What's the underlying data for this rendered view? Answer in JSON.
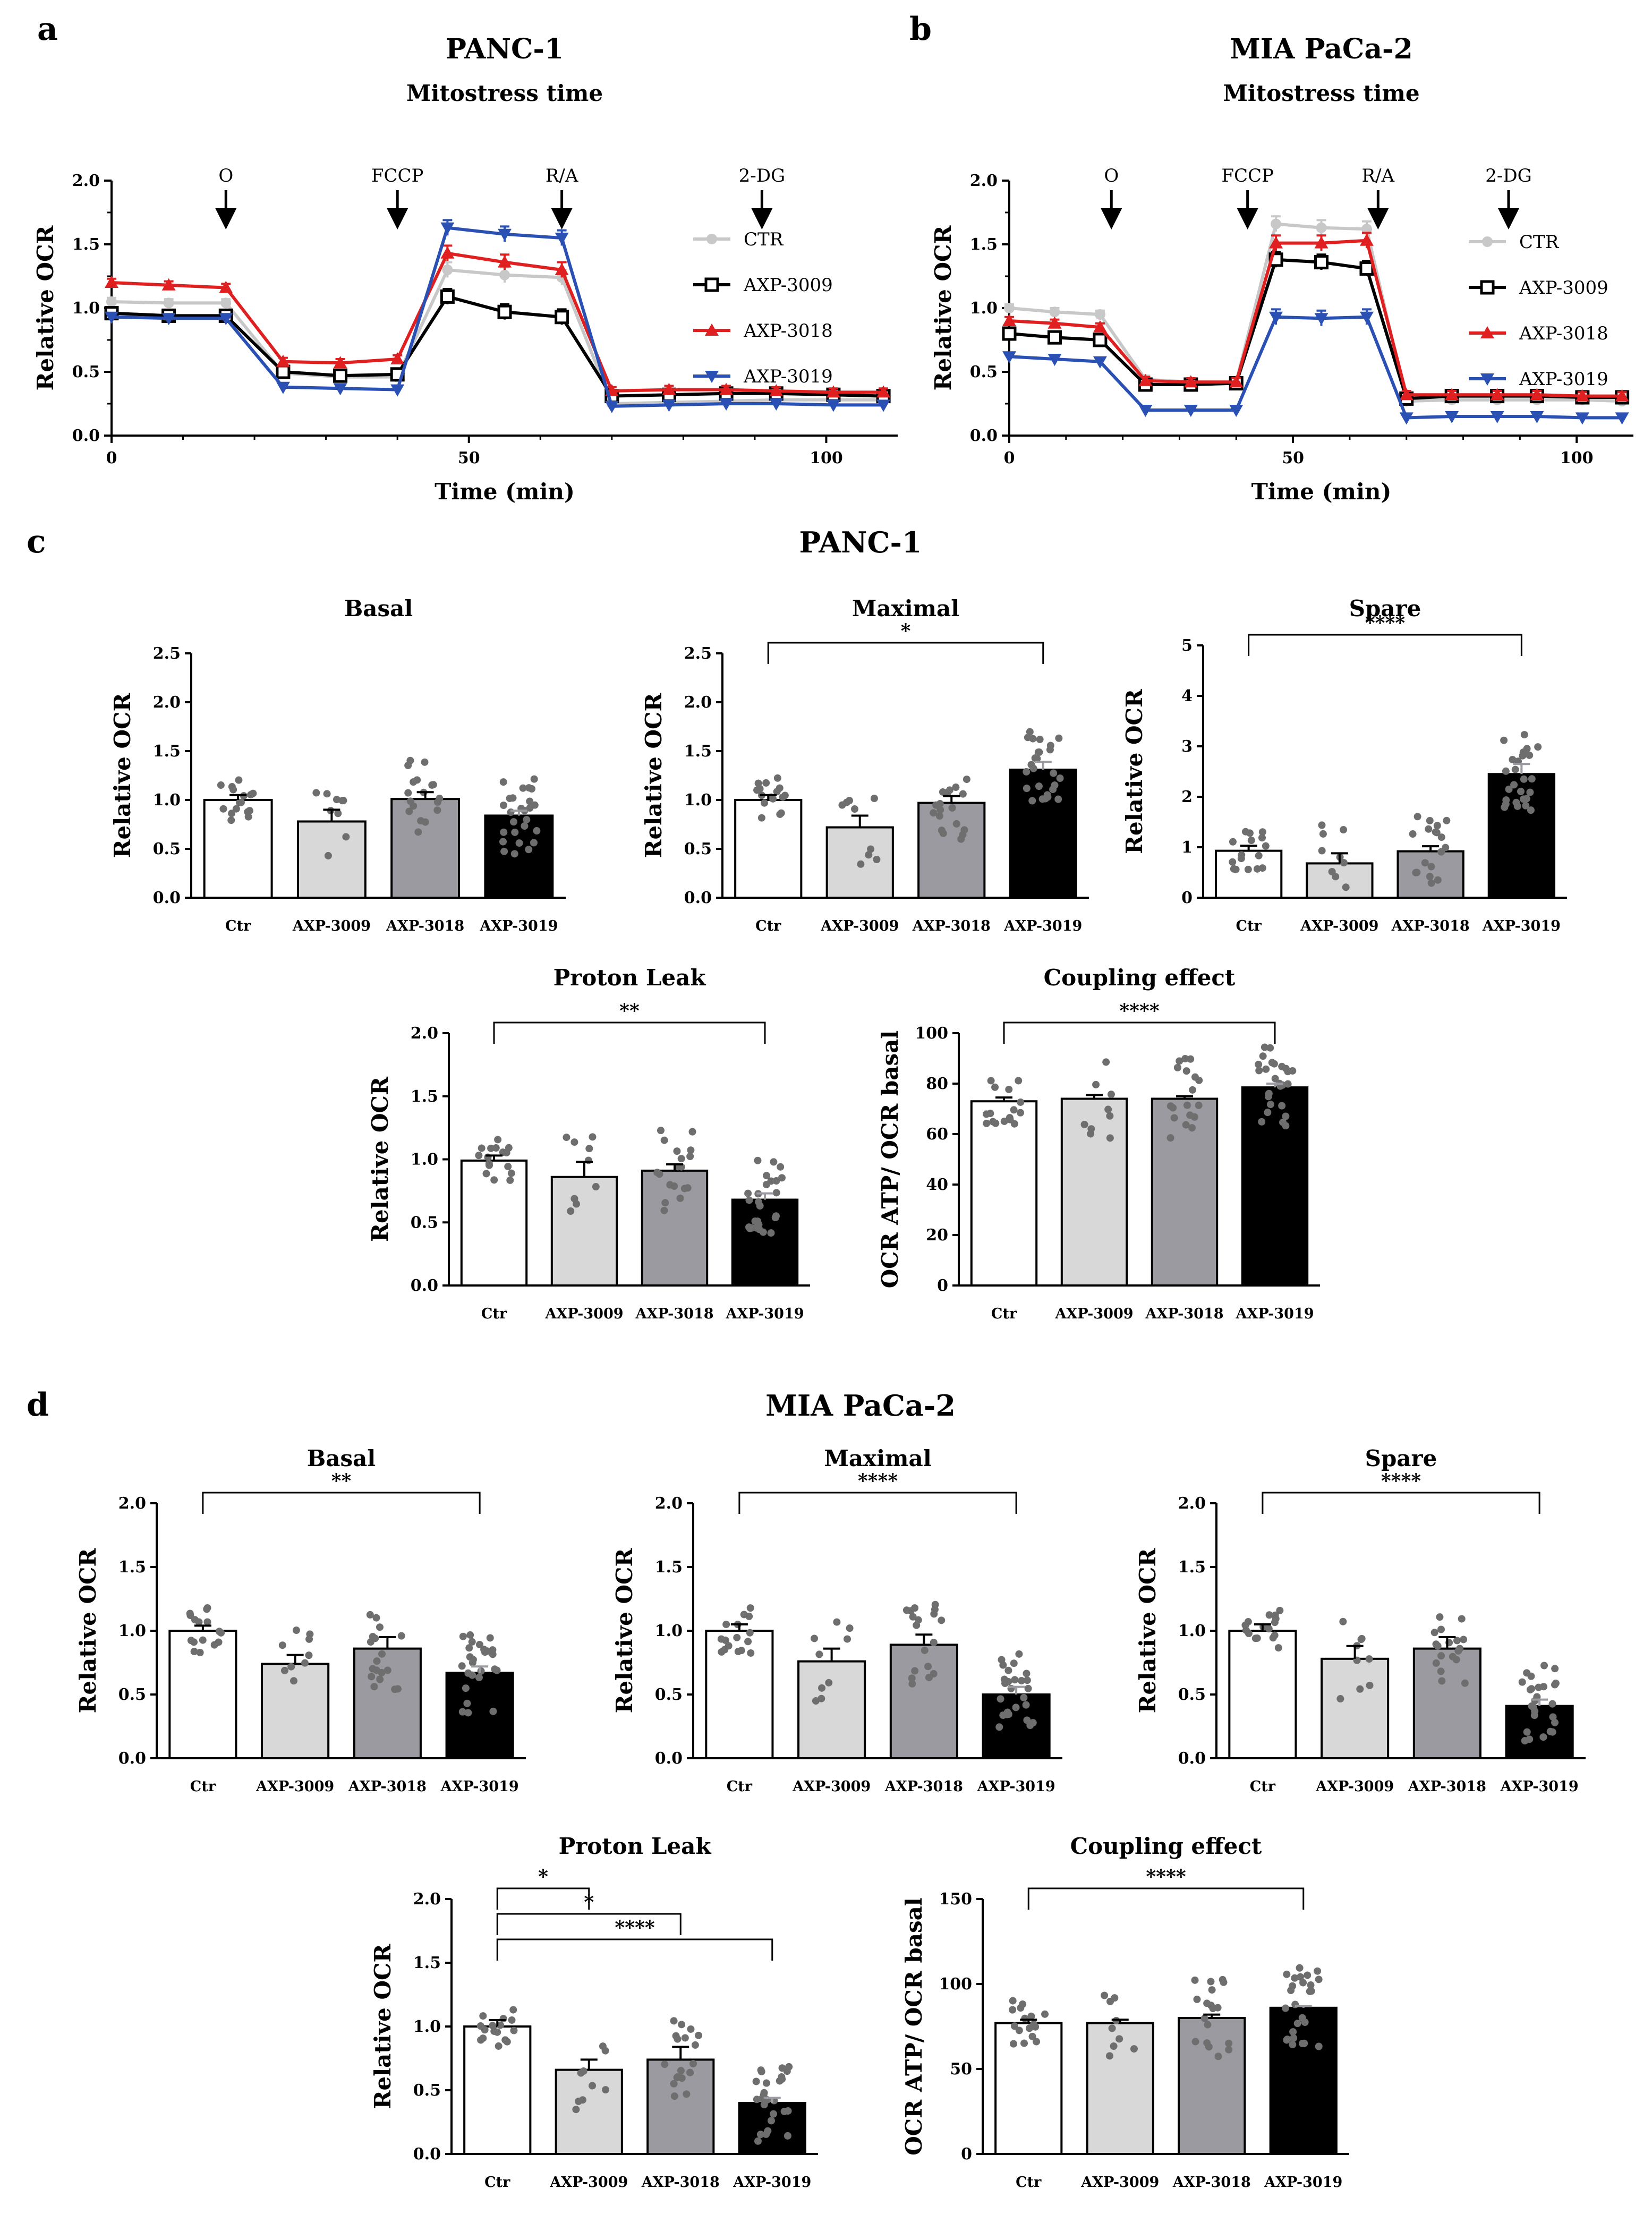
{
  "panel_labels": {
    "a": "a",
    "b": "b",
    "c": "c",
    "d": "d"
  },
  "section_titles": {
    "c": "PANC-1",
    "d": "MIA PaCa-2"
  },
  "colors": {
    "CTR": "#c8c8c8",
    "AXP-3009": "#000000",
    "AXP-3018": "#e02020",
    "AXP-3019": "#2a50b4",
    "bar_Ctr": "#ffffff",
    "bar_AXP-3009": "#d8d8d8",
    "bar_AXP-3018": "#9a9aa0",
    "bar_AXP-3019": "#000000"
  },
  "chart_data": [
    {
      "id": "a",
      "type": "line",
      "title": "PANC-1",
      "subtitle": "Mitostress time",
      "xlabel": "Time (min)",
      "ylabel": "Relative OCR",
      "xlim": [
        0,
        110
      ],
      "ylim": [
        0,
        2.0
      ],
      "xticks": [
        "0",
        "50",
        "100"
      ],
      "yticks": [
        "0.0",
        "0.5",
        "1.0",
        "1.5",
        "2.0"
      ],
      "x": [
        0,
        8,
        16,
        24,
        32,
        40,
        47,
        55,
        63,
        70,
        78,
        86,
        93,
        101,
        108
      ],
      "injections": [
        {
          "label": "O",
          "x": 16
        },
        {
          "label": "FCCP",
          "x": 40
        },
        {
          "label": "R/A",
          "x": 63
        },
        {
          "label": "2-DG",
          "x": 91
        }
      ],
      "legend_position": "right",
      "series": [
        {
          "name": "CTR",
          "values": [
            1.05,
            1.04,
            1.04,
            0.49,
            0.46,
            0.46,
            1.3,
            1.26,
            1.24,
            0.25,
            0.26,
            0.27,
            0.28,
            0.28,
            0.28
          ]
        },
        {
          "name": "AXP-3009",
          "values": [
            0.96,
            0.94,
            0.94,
            0.5,
            0.47,
            0.48,
            1.09,
            0.97,
            0.93,
            0.31,
            0.32,
            0.33,
            0.33,
            0.32,
            0.31
          ]
        },
        {
          "name": "AXP-3018",
          "values": [
            1.2,
            1.18,
            1.16,
            0.58,
            0.57,
            0.6,
            1.43,
            1.36,
            1.3,
            0.35,
            0.36,
            0.36,
            0.35,
            0.34,
            0.34
          ]
        },
        {
          "name": "AXP-3019",
          "values": [
            0.93,
            0.92,
            0.92,
            0.38,
            0.37,
            0.36,
            1.63,
            1.58,
            1.55,
            0.23,
            0.24,
            0.25,
            0.25,
            0.24,
            0.24
          ]
        }
      ]
    },
    {
      "id": "b",
      "type": "line",
      "title": "MIA PaCa-2",
      "subtitle": "Mitostress time",
      "xlabel": "Time (min)",
      "ylabel": "Relative OCR",
      "xlim": [
        0,
        110
      ],
      "ylim": [
        0,
        2.0
      ],
      "xticks": [
        "0",
        "50",
        "100"
      ],
      "yticks": [
        "0.0",
        "0.5",
        "1.0",
        "1.5",
        "2.0"
      ],
      "x": [
        0,
        8,
        16,
        24,
        32,
        40,
        47,
        55,
        63,
        70,
        78,
        86,
        93,
        101,
        108
      ],
      "injections": [
        {
          "label": "O",
          "x": 18
        },
        {
          "label": "FCCP",
          "x": 42
        },
        {
          "label": "R/A",
          "x": 65
        },
        {
          "label": "2-DG",
          "x": 88
        }
      ],
      "legend_position": "right",
      "series": [
        {
          "name": "CTR",
          "values": [
            1.0,
            0.97,
            0.95,
            0.44,
            0.42,
            0.42,
            1.66,
            1.63,
            1.62,
            0.27,
            0.28,
            0.28,
            0.28,
            0.28,
            0.27
          ]
        },
        {
          "name": "AXP-3009",
          "values": [
            0.8,
            0.77,
            0.75,
            0.4,
            0.4,
            0.41,
            1.38,
            1.36,
            1.31,
            0.29,
            0.31,
            0.31,
            0.31,
            0.3,
            0.3
          ]
        },
        {
          "name": "AXP-3018",
          "values": [
            0.9,
            0.88,
            0.85,
            0.43,
            0.42,
            0.42,
            1.51,
            1.51,
            1.53,
            0.32,
            0.32,
            0.32,
            0.32,
            0.31,
            0.31
          ]
        },
        {
          "name": "AXP-3019",
          "values": [
            0.62,
            0.6,
            0.58,
            0.2,
            0.2,
            0.2,
            0.93,
            0.92,
            0.93,
            0.14,
            0.15,
            0.15,
            0.15,
            0.14,
            0.14
          ]
        }
      ]
    },
    {
      "id": "c-basal",
      "type": "bar",
      "title": "Basal",
      "ylabel": "Relative OCR",
      "categories": [
        "Ctr",
        "AXP-3009",
        "AXP-3018",
        "AXP-3019"
      ],
      "values": [
        1.0,
        0.78,
        1.01,
        0.84
      ],
      "errors": [
        0.05,
        0.12,
        0.07,
        0.05
      ],
      "ylim": [
        0,
        2.5
      ],
      "yticks": [
        "0.0",
        "0.5",
        "1.0",
        "1.5",
        "2.0",
        "2.5"
      ],
      "significance": []
    },
    {
      "id": "c-maximal",
      "type": "bar",
      "title": "Maximal",
      "ylabel": "Relative OCR",
      "categories": [
        "Ctr",
        "AXP-3009",
        "AXP-3018",
        "AXP-3019"
      ],
      "values": [
        1.0,
        0.72,
        0.97,
        1.31
      ],
      "errors": [
        0.05,
        0.12,
        0.07,
        0.08
      ],
      "ylim": [
        0,
        2.5
      ],
      "yticks": [
        "0.0",
        "0.5",
        "1.0",
        "1.5",
        "2.0",
        "2.5"
      ],
      "significance": [
        {
          "from": 0,
          "to": 3,
          "label": "*"
        }
      ]
    },
    {
      "id": "c-spare",
      "type": "bar",
      "title": "Spare",
      "ylabel": "Relative OCR",
      "categories": [
        "Ctr",
        "AXP-3009",
        "AXP-3018",
        "AXP-3019"
      ],
      "values": [
        0.93,
        0.68,
        0.92,
        2.45
      ],
      "errors": [
        0.1,
        0.2,
        0.1,
        0.2
      ],
      "ylim": [
        0,
        5
      ],
      "yticks": [
        "0",
        "1",
        "2",
        "3",
        "4",
        "5"
      ],
      "significance": [
        {
          "from": 0,
          "to": 3,
          "label": "****"
        }
      ]
    },
    {
      "id": "c-proton",
      "type": "bar",
      "title": "Proton Leak",
      "ylabel": "Relative OCR",
      "categories": [
        "Ctr",
        "AXP-3009",
        "AXP-3018",
        "AXP-3019"
      ],
      "values": [
        0.99,
        0.86,
        0.91,
        0.68
      ],
      "errors": [
        0.04,
        0.12,
        0.05,
        0.05
      ],
      "ylim": [
        0,
        2.0
      ],
      "yticks": [
        "0.0",
        "0.5",
        "1.0",
        "1.5",
        "2.0"
      ],
      "significance": [
        {
          "from": 0,
          "to": 3,
          "label": "**"
        }
      ]
    },
    {
      "id": "c-coupling",
      "type": "bar",
      "title": "Coupling effect",
      "ylabel": "OCR ATP/ OCR basal",
      "categories": [
        "Ctr",
        "AXP-3009",
        "AXP-3018",
        "AXP-3019"
      ],
      "values": [
        73,
        74,
        74,
        78.5
      ],
      "errors": [
        1.5,
        1.5,
        1.0,
        1.5
      ],
      "ylim": [
        0,
        100
      ],
      "yticks": [
        "0",
        "20",
        "40",
        "60",
        "80",
        "100"
      ],
      "significance": [
        {
          "from": 0,
          "to": 3,
          "label": "****"
        }
      ]
    },
    {
      "id": "d-basal",
      "type": "bar",
      "title": "Basal",
      "ylabel": "Relative OCR",
      "categories": [
        "Ctr",
        "AXP-3009",
        "AXP-3018",
        "AXP-3019"
      ],
      "values": [
        1.0,
        0.74,
        0.86,
        0.67
      ],
      "errors": [
        0.04,
        0.07,
        0.09,
        0.05
      ],
      "ylim": [
        0,
        2.0
      ],
      "yticks": [
        "0.0",
        "0.5",
        "1.0",
        "1.5",
        "2.0"
      ],
      "significance": [
        {
          "from": 0,
          "to": 3,
          "label": "**"
        }
      ]
    },
    {
      "id": "d-maximal",
      "type": "bar",
      "title": "Maximal",
      "ylabel": "Relative OCR",
      "categories": [
        "Ctr",
        "AXP-3009",
        "AXP-3018",
        "AXP-3019"
      ],
      "values": [
        1.0,
        0.76,
        0.89,
        0.5
      ],
      "errors": [
        0.05,
        0.1,
        0.08,
        0.06
      ],
      "ylim": [
        0,
        2.0
      ],
      "yticks": [
        "0.0",
        "0.5",
        "1.0",
        "1.5",
        "2.0"
      ],
      "significance": [
        {
          "from": 0,
          "to": 3,
          "label": "****"
        }
      ]
    },
    {
      "id": "d-spare",
      "type": "bar",
      "title": "Spare",
      "ylabel": "Relative OCR",
      "categories": [
        "Ctr",
        "AXP-3009",
        "AXP-3018",
        "AXP-3019"
      ],
      "values": [
        1.0,
        0.78,
        0.86,
        0.41
      ],
      "errors": [
        0.05,
        0.1,
        0.09,
        0.05
      ],
      "ylim": [
        0,
        2.0
      ],
      "yticks": [
        "0.0",
        "0.5",
        "1.0",
        "1.5",
        "2.0"
      ],
      "significance": [
        {
          "from": 0,
          "to": 3,
          "label": "****"
        }
      ]
    },
    {
      "id": "d-proton",
      "type": "bar",
      "title": "Proton Leak",
      "ylabel": "Relative OCR",
      "categories": [
        "Ctr",
        "AXP-3009",
        "AXP-3018",
        "AXP-3019"
      ],
      "values": [
        1.0,
        0.66,
        0.74,
        0.4
      ],
      "errors": [
        0.05,
        0.08,
        0.1,
        0.04
      ],
      "ylim": [
        0,
        2.0
      ],
      "yticks": [
        "0.0",
        "0.5",
        "1.0",
        "1.5",
        "2.0"
      ],
      "significance": [
        {
          "from": 0,
          "to": 1,
          "label": "*"
        },
        {
          "from": 0,
          "to": 2,
          "label": "*"
        },
        {
          "from": 0,
          "to": 3,
          "label": "****"
        }
      ]
    },
    {
      "id": "d-coupling",
      "type": "bar",
      "title": "Coupling effect",
      "ylabel": "OCR ATP/ OCR basal",
      "categories": [
        "Ctr",
        "AXP-3009",
        "AXP-3018",
        "AXP-3019"
      ],
      "values": [
        77,
        77,
        80,
        86
      ],
      "errors": [
        2,
        2,
        2,
        1
      ],
      "ylim": [
        0,
        150
      ],
      "yticks": [
        "0",
        "50",
        "100",
        "150"
      ],
      "significance": [
        {
          "from": 0,
          "to": 3,
          "label": "****"
        }
      ]
    }
  ]
}
